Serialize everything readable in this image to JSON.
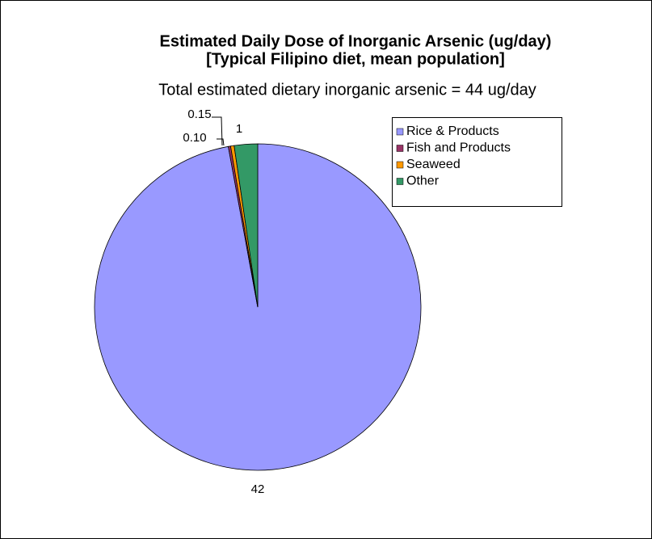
{
  "chart_data": {
    "type": "pie",
    "title": "Estimated Daily Dose of Inorganic Arsenic (ug/day)",
    "title_line2": "[Typical Filipino diet, mean population]",
    "subtitle": "Total estimated dietary inorganic arsenic = 44 ug/day",
    "categories": [
      "Rice & Products",
      "Fish and Products",
      "Seaweed",
      "Other"
    ],
    "values": [
      42,
      0.1,
      0.15,
      1
    ],
    "value_labels": [
      "42",
      "0.10",
      "0.15",
      "1"
    ],
    "colors": [
      "#9999ff",
      "#993366",
      "#ff9900",
      "#339966"
    ],
    "legend": "right"
  }
}
